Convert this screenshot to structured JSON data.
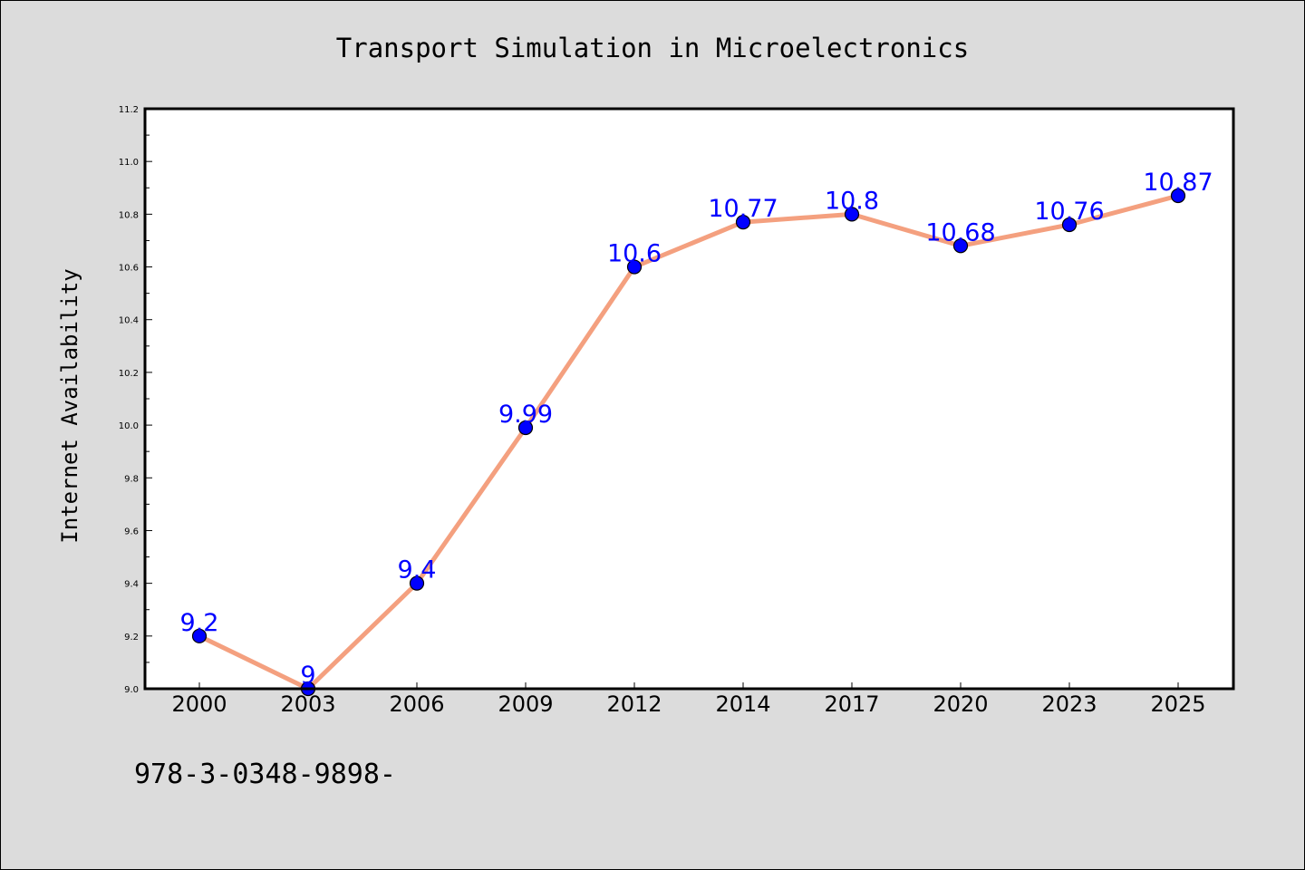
{
  "chart_data": {
    "type": "line",
    "title": "Transport Simulation in Microelectronics",
    "xlabel": "",
    "ylabel": "Internet Availability",
    "categories": [
      "2000",
      "2003",
      "2006",
      "2009",
      "2012",
      "2014",
      "2017",
      "2020",
      "2023",
      "2025"
    ],
    "series": [
      {
        "values": [
          9.2,
          9.0,
          9.4,
          9.99,
          10.6,
          10.77,
          10.8,
          10.68,
          10.76,
          10.87
        ],
        "labels": [
          "9.2",
          "9",
          "9.4",
          "9.99",
          "10.6",
          "10.77",
          "10.8",
          "10.68",
          "10.76",
          "10.87"
        ]
      }
    ],
    "ylim": [
      9.0,
      11.2
    ],
    "yticks": [
      "9.0",
      "9.2",
      "9.4",
      "9.6",
      "9.8",
      "10.0",
      "10.2",
      "10.4",
      "10.6",
      "10.8",
      "11.0",
      "11.2"
    ],
    "grid": false,
    "line_color": "#f4a07f",
    "marker_color": "#0000ff",
    "label_color": "#0000ff"
  },
  "footer": {
    "text": "978-3-0348-9898-"
  }
}
